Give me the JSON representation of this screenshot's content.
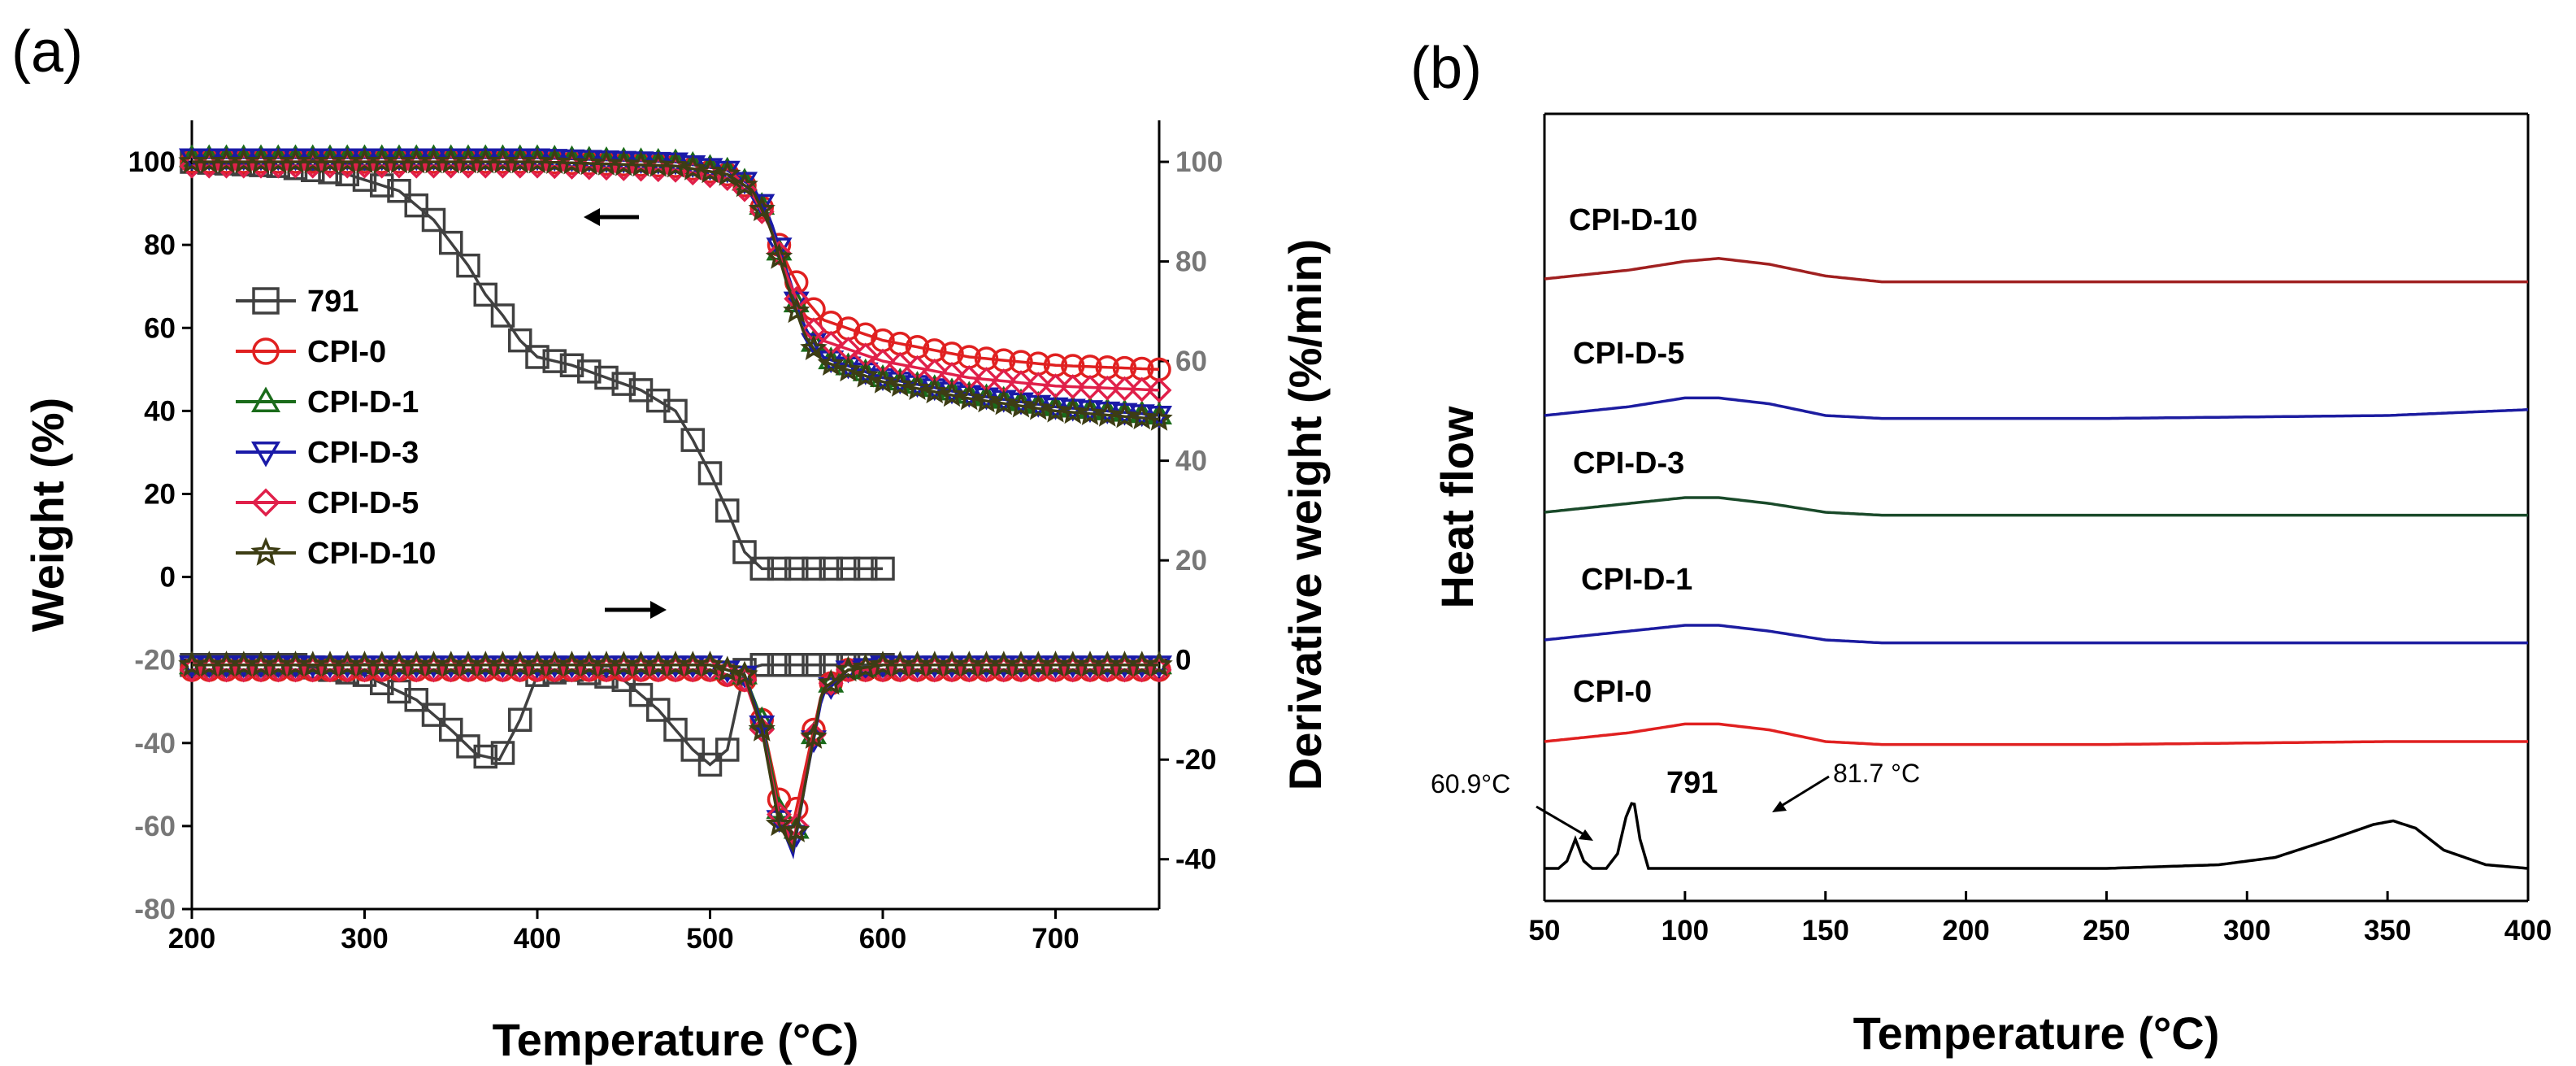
{
  "panel_a": {
    "tag": "(a)",
    "arrow_left_label": "←",
    "arrow_right_label": "→"
  },
  "panel_b": {
    "tag": "(b)"
  },
  "chart_data": [
    {
      "type": "line",
      "panel": "(a)",
      "xlabel": "Temperature (°C)",
      "ylabel": "Weight (%)",
      "y2label": "Derivative weight (%/min)",
      "xlim": [
        200,
        760
      ],
      "ylim": [
        -80,
        110
      ],
      "xticks": [
        "200",
        "300",
        "400",
        "500",
        "600",
        "700"
      ],
      "yticks": [
        "100",
        "80",
        "60",
        "40",
        "20",
        "0",
        "-20",
        "-40",
        "-60",
        "-80"
      ],
      "y2ticks": [
        "100",
        "80",
        "60",
        "40",
        "20",
        "0",
        "-20",
        "-40"
      ],
      "legend": [
        "791",
        "CPI-0",
        "CPI-D-1",
        "CPI-D-3",
        "CPI-D-5",
        "CPI-D-10"
      ],
      "legend_position": "left-middle",
      "colors": {
        "791": "#404040",
        "CPI-0": "#e02020",
        "CPI-D-1": "#1a6b1a",
        "CPI-D-3": "#1a1aa8",
        "CPI-D-5": "#e0204a",
        "CPI-D-10": "#3d3d14"
      },
      "weight_series": [
        {
          "name": "791",
          "x": [
            200,
            250,
            290,
            320,
            340,
            360,
            370,
            380,
            390,
            400,
            420,
            440,
            460,
            480,
            490,
            500,
            510,
            520,
            530,
            540,
            560,
            580,
            600
          ],
          "y": [
            100,
            99,
            97,
            93,
            86,
            75,
            68,
            63,
            57,
            53,
            51,
            48,
            45,
            40,
            33,
            25,
            16,
            6,
            2,
            2,
            2,
            2,
            2
          ]
        },
        {
          "name": "CPI-0",
          "x": [
            200,
            300,
            400,
            480,
            510,
            525,
            535,
            545,
            555,
            565,
            600,
            650,
            700,
            760
          ],
          "y": [
            100,
            100,
            100,
            99,
            97,
            93,
            85,
            75,
            67,
            62,
            57,
            53,
            51,
            50
          ]
        },
        {
          "name": "CPI-D-1",
          "x": [
            200,
            300,
            400,
            480,
            510,
            525,
            535,
            545,
            555,
            565,
            600,
            650,
            700,
            760
          ],
          "y": [
            101,
            101,
            101,
            100,
            98,
            94,
            85,
            72,
            60,
            53,
            48,
            44,
            41,
            39
          ]
        },
        {
          "name": "CPI-D-3",
          "x": [
            200,
            300,
            400,
            480,
            510,
            525,
            535,
            545,
            555,
            565,
            600,
            650,
            700,
            760
          ],
          "y": [
            101,
            101,
            101,
            100,
            98,
            94,
            86,
            73,
            60,
            53,
            48,
            44,
            41,
            39
          ]
        },
        {
          "name": "CPI-D-5",
          "x": [
            200,
            300,
            400,
            480,
            510,
            525,
            535,
            545,
            555,
            565,
            600,
            650,
            700,
            760
          ],
          "y": [
            99,
            99,
            99,
            98,
            96,
            92,
            84,
            72,
            62,
            57,
            52,
            48,
            46,
            45
          ]
        },
        {
          "name": "CPI-D-10",
          "x": [
            200,
            300,
            400,
            480,
            510,
            525,
            535,
            545,
            555,
            565,
            600,
            650,
            700,
            760
          ],
          "y": [
            100,
            100,
            100,
            99,
            97,
            93,
            84,
            70,
            58,
            52,
            47,
            43,
            40,
            38
          ]
        }
      ],
      "derivative_series": [
        {
          "name": "791",
          "x": [
            200,
            260,
            300,
            330,
            350,
            365,
            378,
            390,
            400,
            420,
            450,
            470,
            490,
            500,
            510,
            520,
            530,
            560,
            600
          ],
          "y": [
            -1,
            -1,
            -3,
            -8,
            -14,
            -19,
            -20,
            -12,
            -3,
            -2,
            -4,
            -10,
            -18,
            -21,
            -18,
            -2,
            -1,
            -1,
            -1
          ]
        },
        {
          "name": "CPI-0",
          "x": [
            200,
            400,
            500,
            520,
            530,
            540,
            548,
            555,
            565,
            580,
            600,
            700,
            760
          ],
          "y": [
            -2,
            -2,
            -2,
            -4,
            -12,
            -28,
            -33,
            -22,
            -6,
            -2,
            -2,
            -2,
            -2
          ]
        },
        {
          "name": "CPI-D-1",
          "x": [
            200,
            400,
            500,
            520,
            530,
            540,
            548,
            555,
            565,
            580,
            600,
            700,
            760
          ],
          "y": [
            -1,
            -1,
            -1,
            -3,
            -12,
            -30,
            -38,
            -24,
            -6,
            -2,
            -1,
            -1,
            -1
          ]
        },
        {
          "name": "CPI-D-3",
          "x": [
            200,
            400,
            500,
            520,
            530,
            540,
            548,
            555,
            565,
            580,
            600,
            700,
            760
          ],
          "y": [
            -1,
            -1,
            -1,
            -3,
            -13,
            -32,
            -39,
            -25,
            -7,
            -2,
            -1,
            -1,
            -1
          ]
        },
        {
          "name": "CPI-D-5",
          "x": [
            200,
            400,
            500,
            520,
            530,
            540,
            548,
            555,
            565,
            580,
            600,
            700,
            760
          ],
          "y": [
            -2,
            -2,
            -2,
            -4,
            -14,
            -31,
            -37,
            -24,
            -6,
            -2,
            -2,
            -2,
            -2
          ]
        },
        {
          "name": "CPI-D-10",
          "x": [
            200,
            400,
            500,
            520,
            530,
            540,
            548,
            555,
            565,
            580,
            600,
            700,
            760
          ],
          "y": [
            -1,
            -1,
            -1,
            -3,
            -14,
            -33,
            -38,
            -25,
            -6,
            -2,
            -1,
            -1,
            -1
          ]
        }
      ]
    },
    {
      "type": "line",
      "panel": "(b)",
      "xlabel": "Temperature (°C)",
      "ylabel": "Heat flow",
      "xlim": [
        50,
        400
      ],
      "xticks": [
        "50",
        "100",
        "150",
        "200",
        "250",
        "300",
        "350",
        "400"
      ],
      "annotations": [
        "60.9°C",
        "81.7 °C"
      ],
      "series": [
        {
          "name": "CPI-D-10",
          "color": "#a02020",
          "x": [
            50,
            80,
            100,
            112,
            130,
            150,
            170,
            250,
            350,
            400
          ],
          "y": [
            0,
            3,
            6,
            7,
            5,
            1,
            -1,
            -1,
            -1,
            -1
          ]
        },
        {
          "name": "CPI-D-5",
          "color": "#1c1ca0",
          "x": [
            50,
            80,
            100,
            112,
            130,
            150,
            170,
            250,
            350,
            400
          ],
          "y": [
            0,
            3,
            6,
            6,
            4,
            0,
            -1,
            -1,
            0,
            2
          ]
        },
        {
          "name": "CPI-D-3",
          "color": "#1a4a2a",
          "x": [
            50,
            80,
            100,
            112,
            130,
            150,
            170,
            250,
            350,
            400
          ],
          "y": [
            0,
            3,
            5,
            5,
            3,
            0,
            -1,
            -1,
            -1,
            -1
          ]
        },
        {
          "name": "CPI-D-1",
          "color": "#1c1ca0",
          "x": [
            50,
            80,
            100,
            112,
            130,
            150,
            170,
            250,
            350,
            400
          ],
          "y": [
            0,
            3,
            5,
            5,
            3,
            0,
            -1,
            -1,
            -1,
            -1
          ]
        },
        {
          "name": "CPI-0",
          "color": "#e02020",
          "x": [
            50,
            80,
            100,
            112,
            130,
            150,
            170,
            250,
            350,
            400
          ],
          "y": [
            0,
            3,
            6,
            6,
            4,
            0,
            -1,
            -1,
            0,
            0
          ]
        },
        {
          "name": "791",
          "color": "#000000",
          "x": [
            50,
            55,
            58,
            61,
            64,
            67,
            72,
            76,
            79,
            81.7,
            84,
            87,
            92,
            110,
            150,
            200,
            250,
            290,
            310,
            330,
            345,
            352,
            360,
            370,
            385,
            400
          ],
          "y": [
            0,
            0,
            2,
            8,
            2,
            0,
            0,
            4,
            14,
            19,
            8,
            0,
            0,
            0,
            0,
            0,
            0,
            1,
            3,
            8,
            12,
            13,
            11,
            5,
            1,
            0
          ]
        }
      ]
    }
  ]
}
